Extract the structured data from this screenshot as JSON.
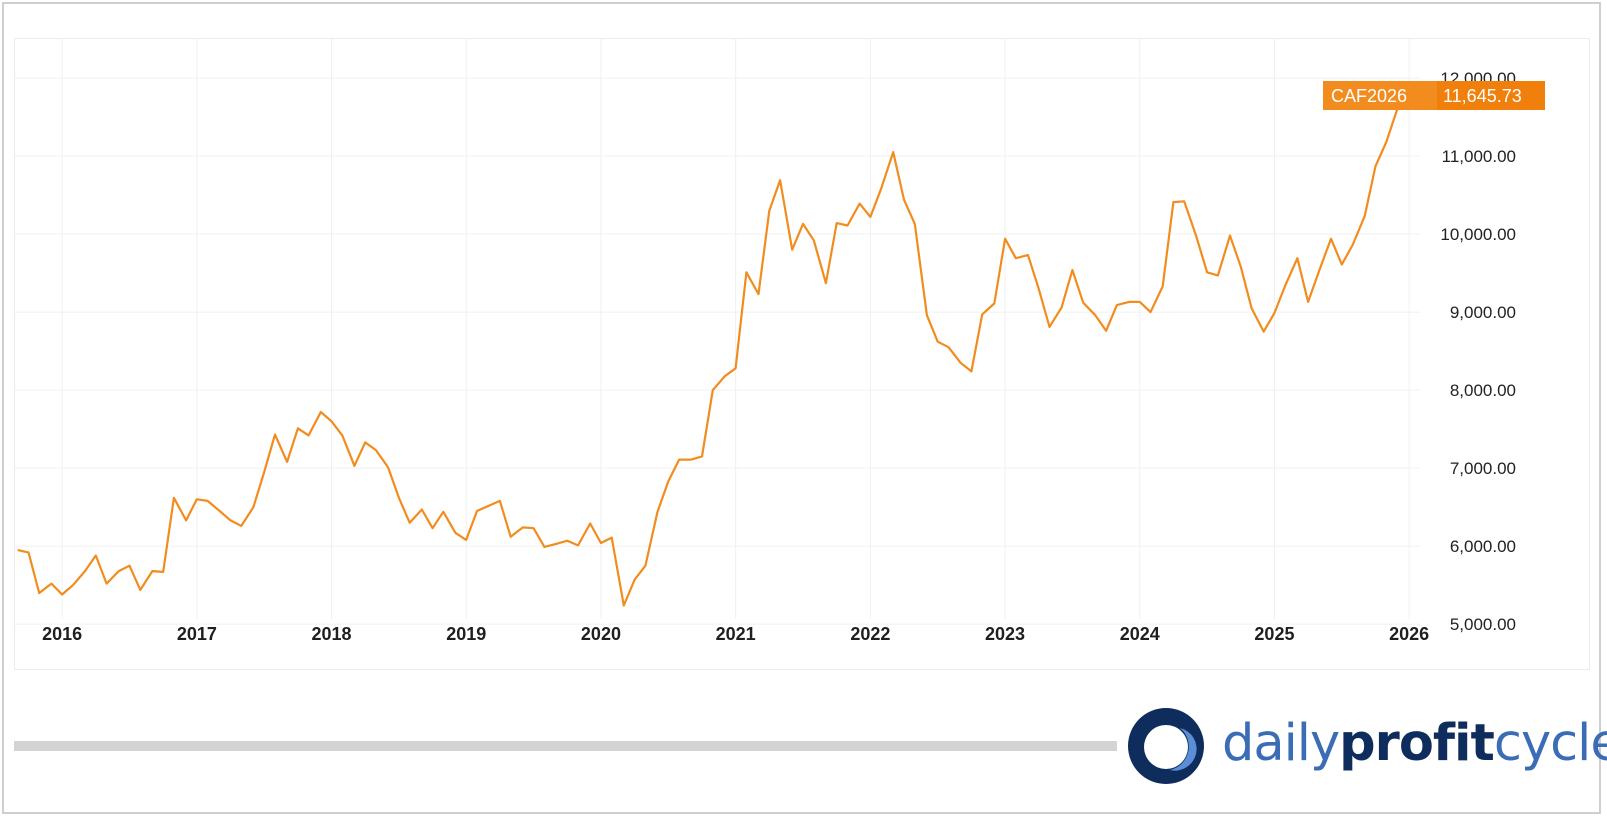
{
  "chart_data": {
    "type": "line",
    "ticker": "CAF2026",
    "last_value_label": "11,645.73",
    "last_value": 11645.73,
    "line_color": "#f28c1e",
    "badge_colors": {
      "ticker_bg": "#f28c1e",
      "value_bg": "#f07f0c"
    },
    "y_ticks": [
      5000,
      6000,
      7000,
      8000,
      9000,
      10000,
      11000,
      12000
    ],
    "y_tick_labels": [
      "5,000.00",
      "6,000.00",
      "7,000.00",
      "8,000.00",
      "9,000.00",
      "10,000.00",
      "11,000.00",
      "12,000.00"
    ],
    "x_tick_labels": [
      "2016",
      "2017",
      "2018",
      "2019",
      "2020",
      "2021",
      "2022",
      "2023",
      "2024",
      "2025",
      "2026"
    ],
    "x_ticks": [
      2016,
      2017,
      2018,
      2019,
      2020,
      2021,
      2022,
      2023,
      2024,
      2025,
      2026
    ],
    "ylim": [
      4400,
      12500
    ],
    "xlim": [
      2015.65,
      2027.35
    ],
    "grid": true,
    "x": [
      2015.67,
      2015.75,
      2015.83,
      2015.92,
      2016.0,
      2016.08,
      2016.17,
      2016.25,
      2016.33,
      2016.42,
      2016.5,
      2016.58,
      2016.67,
      2016.75,
      2016.83,
      2016.92,
      2017.0,
      2017.08,
      2017.17,
      2017.25,
      2017.33,
      2017.42,
      2017.5,
      2017.58,
      2017.67,
      2017.75,
      2017.83,
      2017.92,
      2018.0,
      2018.08,
      2018.17,
      2018.25,
      2018.33,
      2018.42,
      2018.5,
      2018.58,
      2018.67,
      2018.75,
      2018.83,
      2018.92,
      2019.0,
      2019.08,
      2019.17,
      2019.25,
      2019.33,
      2019.42,
      2019.5,
      2019.58,
      2019.67,
      2019.75,
      2019.83,
      2019.92,
      2020.0,
      2020.08,
      2020.17,
      2020.25,
      2020.33,
      2020.42,
      2020.5,
      2020.58,
      2020.67,
      2020.75,
      2020.83,
      2020.92,
      2021.0,
      2021.08,
      2021.17,
      2021.25,
      2021.33,
      2021.42,
      2021.5,
      2021.58,
      2021.67,
      2021.75,
      2021.83,
      2021.92,
      2022.0,
      2022.08,
      2022.17,
      2022.25,
      2022.33,
      2022.42,
      2022.5,
      2022.58,
      2022.67,
      2022.75,
      2022.83,
      2022.92,
      2023.0,
      2023.08,
      2023.17,
      2023.25,
      2023.33,
      2023.42,
      2023.5,
      2023.58,
      2023.67,
      2023.75,
      2023.83,
      2023.92,
      2024.0,
      2024.08,
      2024.17,
      2024.25,
      2024.33,
      2024.42,
      2024.5,
      2024.58,
      2024.67,
      2024.75,
      2024.83,
      2024.92,
      2025.0,
      2025.08,
      2025.17,
      2025.25,
      2025.33,
      2025.42,
      2025.5,
      2025.58,
      2025.67,
      2025.75,
      2025.83,
      2025.92
    ],
    "y": [
      5950,
      5920,
      5400,
      5520,
      5380,
      5500,
      5680,
      5880,
      5520,
      5680,
      5750,
      5440,
      5680,
      5670,
      6620,
      6330,
      6600,
      6580,
      6450,
      6330,
      6260,
      6500,
      6950,
      7430,
      7080,
      7510,
      7420,
      7720,
      7600,
      7420,
      7030,
      7330,
      7230,
      7010,
      6620,
      6300,
      6470,
      6230,
      6440,
      6170,
      6080,
      6450,
      6520,
      6580,
      6120,
      6240,
      6230,
      5990,
      6030,
      6070,
      6010,
      6290,
      6040,
      6110,
      5240,
      5570,
      5750,
      6440,
      6830,
      7110,
      7110,
      7150,
      8000,
      8180,
      8280,
      9510,
      9230,
      10300,
      10690,
      9800,
      10130,
      9920,
      9370,
      10140,
      10110,
      10390,
      10220,
      10580,
      11050,
      10440,
      10130,
      8960,
      8620,
      8550,
      8350,
      8240,
      8970,
      9110,
      9940,
      9690,
      9730,
      9300,
      8810,
      9060,
      9540,
      9120,
      8960,
      8760,
      9090,
      9130,
      9130,
      9000,
      9330,
      10410,
      10420,
      9970,
      9510,
      9470,
      9980,
      9580,
      9050,
      8750,
      8990,
      9340,
      9690,
      9130,
      9520,
      9940,
      9610,
      9860,
      10230,
      10870,
      11180,
      11645.73
    ]
  },
  "logo": {
    "part_bold": "dailyprofit",
    "part_light": "cycle",
    "part_daily": "daily",
    "part_profit": "profit"
  }
}
